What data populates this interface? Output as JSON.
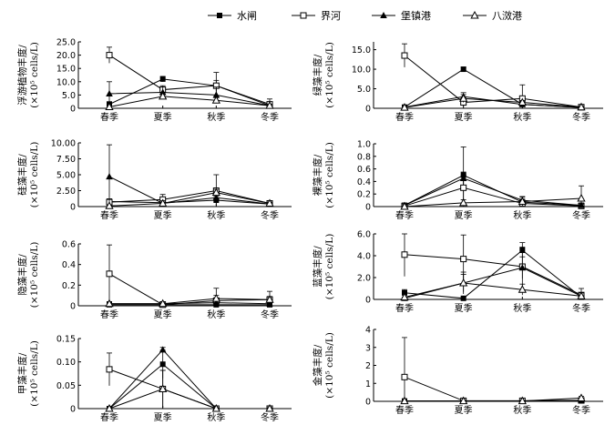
{
  "legend": {
    "items": [
      {
        "label": "水闸",
        "marker": "square-filled"
      },
      {
        "label": "界河",
        "marker": "square-open"
      },
      {
        "label": "堡镇港",
        "marker": "triangle-filled"
      },
      {
        "label": "八滧港",
        "marker": "triangle-open"
      }
    ]
  },
  "chart_data": [
    {
      "type": "line",
      "ylabel_lines": [
        "浮游植物丰度/",
        "(×10⁵ cells/L)"
      ],
      "categories": [
        "春季",
        "夏季",
        "秋季",
        "冬季"
      ],
      "ylim": [
        0,
        25
      ],
      "yticks": [
        "0",
        "5.0",
        "10.0",
        "15.0",
        "20.0",
        "25.0"
      ],
      "ytick_values": [
        0,
        5,
        10,
        15,
        20,
        25
      ],
      "series": [
        {
          "name": "水闸",
          "values": [
            1.5,
            11.0,
            8.5,
            1.0
          ],
          "errors": [
            1.0,
            1.0,
            2.0,
            0.5
          ]
        },
        {
          "name": "界河",
          "values": [
            20.0,
            7.0,
            8.5,
            1.5
          ],
          "errors": [
            3.0,
            1.5,
            5.0,
            2.0
          ]
        },
        {
          "name": "堡镇港",
          "values": [
            5.5,
            6.0,
            5.0,
            1.0
          ],
          "errors": [
            4.5,
            2.0,
            3.0,
            0.5
          ]
        },
        {
          "name": "八滧港",
          "values": [
            0.5,
            4.5,
            3.0,
            1.0
          ],
          "errors": [
            0.5,
            1.0,
            1.0,
            0.5
          ]
        }
      ]
    },
    {
      "type": "line",
      "ylabel_lines": [
        "绿藻丰度/",
        "(×10⁵ cells/L)"
      ],
      "categories": [
        "春季",
        "夏季",
        "秋季",
        "冬季"
      ],
      "ylim": [
        0,
        17
      ],
      "yticks": [
        "0",
        "5.0",
        "10.0",
        "15.0"
      ],
      "ytick_values": [
        0,
        5,
        10,
        15
      ],
      "series": [
        {
          "name": "水闸",
          "values": [
            0.3,
            10.0,
            1.0,
            0.2
          ],
          "errors": [
            0.2,
            0.5,
            0.5,
            0.1
          ]
        },
        {
          "name": "界河",
          "values": [
            13.5,
            1.5,
            2.5,
            0.3
          ],
          "errors": [
            3.0,
            1.0,
            3.5,
            0.2
          ]
        },
        {
          "name": "堡镇港",
          "values": [
            0.3,
            3.0,
            1.0,
            0.2
          ],
          "errors": [
            0.3,
            1.0,
            0.5,
            0.1
          ]
        },
        {
          "name": "八滧港",
          "values": [
            0.2,
            2.5,
            1.5,
            0.3
          ],
          "errors": [
            0.2,
            1.0,
            0.5,
            0.2
          ]
        }
      ]
    },
    {
      "type": "line",
      "ylabel_lines": [
        "硅藻丰度/",
        "(×10⁵ cells/L)"
      ],
      "categories": [
        "春季",
        "夏季",
        "秋季",
        "冬季"
      ],
      "ylim": [
        0,
        10
      ],
      "yticks": [
        "0",
        "2.50",
        "5.00",
        "7.50",
        "10.00"
      ],
      "ytick_values": [
        0,
        2.5,
        5,
        7.5,
        10
      ],
      "series": [
        {
          "name": "水闸",
          "values": [
            0.8,
            0.6,
            1.0,
            0.4
          ],
          "errors": [
            0.4,
            0.4,
            0.6,
            0.2
          ]
        },
        {
          "name": "界河",
          "values": [
            0.7,
            1.1,
            2.5,
            0.5
          ],
          "errors": [
            0.5,
            0.8,
            2.5,
            0.3
          ]
        },
        {
          "name": "堡镇港",
          "values": [
            4.7,
            0.5,
            1.4,
            0.4
          ],
          "errors": [
            5.0,
            0.4,
            0.8,
            0.2
          ]
        },
        {
          "name": "八滧港",
          "values": [
            0.1,
            0.5,
            2.2,
            0.5
          ],
          "errors": [
            0.1,
            0.4,
            0.5,
            0.2
          ]
        }
      ]
    },
    {
      "type": "line",
      "ylabel_lines": [
        "裸藻丰度/",
        "(×10⁵ cells/L)"
      ],
      "categories": [
        "春季",
        "夏季",
        "秋季",
        "冬季"
      ],
      "ylim": [
        0,
        1.0
      ],
      "yticks": [
        "0",
        "0.2",
        "0.4",
        "0.6",
        "0.8",
        "1.0"
      ],
      "ytick_values": [
        0,
        0.2,
        0.4,
        0.6,
        0.8,
        1.0
      ],
      "series": [
        {
          "name": "水闸",
          "values": [
            0.02,
            0.5,
            0.07,
            0.02
          ],
          "errors": [
            0.02,
            0.45,
            0.05,
            0.02
          ]
        },
        {
          "name": "界河",
          "values": [
            0.01,
            0.3,
            0.05,
            0.01
          ],
          "errors": [
            0.01,
            0.2,
            0.04,
            0.01
          ]
        },
        {
          "name": "堡镇港",
          "values": [
            0.02,
            0.45,
            0.1,
            0.02
          ],
          "errors": [
            0.02,
            0.1,
            0.05,
            0.02
          ]
        },
        {
          "name": "八滧港",
          "values": [
            0.0,
            0.06,
            0.08,
            0.13
          ],
          "errors": [
            0.01,
            0.05,
            0.08,
            0.2
          ]
        }
      ]
    },
    {
      "type": "line",
      "ylabel_lines": [
        "隐藻丰度/",
        "(×10⁵ cells/L)"
      ],
      "categories": [
        "春季",
        "夏季",
        "秋季",
        "冬季"
      ],
      "ylim": [
        0,
        0.6
      ],
      "yticks": [
        "0",
        "0.2",
        "0.4",
        "0.6"
      ],
      "ytick_values": [
        0,
        0.2,
        0.4,
        0.6
      ],
      "series": [
        {
          "name": "水闸",
          "values": [
            0.01,
            0.01,
            0.01,
            0.01
          ],
          "errors": [
            0.01,
            0.01,
            0.01,
            0.01
          ]
        },
        {
          "name": "界河",
          "values": [
            0.31,
            0.01,
            0.05,
            0.06
          ],
          "errors": [
            0.28,
            0.03,
            0.12,
            0.08
          ]
        },
        {
          "name": "堡镇港",
          "values": [
            0.02,
            0.02,
            0.03,
            0.02
          ],
          "errors": [
            0.02,
            0.02,
            0.03,
            0.02
          ]
        },
        {
          "name": "八滧港",
          "values": [
            0.02,
            0.02,
            0.07,
            0.06
          ],
          "errors": [
            0.02,
            0.02,
            0.03,
            0.03
          ]
        }
      ]
    },
    {
      "type": "line",
      "ylabel_lines": [
        "蓝藻丰度/",
        "(×10⁵ cells/L)"
      ],
      "categories": [
        "春季",
        "夏季",
        "秋季",
        "冬季"
      ],
      "ylim": [
        0,
        6.0
      ],
      "yticks": [
        "0",
        "2.0",
        "4.0",
        "6.0"
      ],
      "ytick_values": [
        0,
        2,
        4,
        6
      ],
      "series": [
        {
          "name": "水闸",
          "values": [
            0.6,
            0.1,
            4.5,
            0.2
          ],
          "errors": [
            0.3,
            0.1,
            0.7,
            0.2
          ]
        },
        {
          "name": "界河",
          "values": [
            4.1,
            3.7,
            3.0,
            0.4
          ],
          "errors": [
            2.0,
            2.2,
            1.8,
            0.6
          ]
        },
        {
          "name": "堡镇港",
          "values": [
            0.1,
            1.5,
            2.9,
            0.3
          ],
          "errors": [
            0.1,
            0.8,
            1.0,
            0.3
          ]
        },
        {
          "name": "八滧港",
          "values": [
            0.2,
            1.5,
            0.9,
            0.3
          ],
          "errors": [
            0.2,
            1.0,
            0.5,
            0.3
          ]
        }
      ]
    },
    {
      "type": "line",
      "ylabel_lines": [
        "甲藻丰度/",
        "(×10⁵ cells/L)"
      ],
      "categories": [
        "春季",
        "夏季",
        "秋季",
        "冬季"
      ],
      "ylim": [
        0,
        0.15
      ],
      "yticks": [
        "0",
        "0.05",
        "0.10",
        "0.15"
      ],
      "ytick_values": [
        0,
        0.05,
        0.1,
        0.15
      ],
      "series": [
        {
          "name": "水闸",
          "values": [
            0.0,
            0.095,
            0.0,
            0.0
          ],
          "errors": [
            0.0,
            0.03,
            0.002,
            0.002
          ]
        },
        {
          "name": "界河",
          "values": [
            0.084,
            0.042,
            0.0,
            0.0
          ],
          "errors": [
            0.035,
            0.04,
            0.002,
            0.002
          ]
        },
        {
          "name": "堡镇港",
          "values": [
            0.0,
            0.126,
            0.0,
            0.0
          ],
          "errors": [
            0.0,
            0.005,
            0.002,
            0.002
          ]
        },
        {
          "name": "八滧港",
          "values": [
            0.0,
            0.042,
            0.0,
            0.0
          ],
          "errors": [
            0.0,
            0.04,
            0.002,
            0.002
          ]
        }
      ]
    },
    {
      "type": "line",
      "ylabel_lines": [
        "金藻丰度/",
        "(×10⁵ cells/L)"
      ],
      "categories": [
        "春季",
        "夏季",
        "秋季",
        "冬季"
      ],
      "ylim": [
        0,
        4
      ],
      "yticks": [
        "0",
        "1",
        "2",
        "3",
        "4"
      ],
      "ytick_values": [
        0,
        1,
        2,
        3,
        4
      ],
      "series": [
        {
          "name": "水闸",
          "values": [
            0.02,
            0.02,
            0.02,
            0.05
          ],
          "errors": [
            0.02,
            0.02,
            0.02,
            0.05
          ]
        },
        {
          "name": "界河",
          "values": [
            1.35,
            0.03,
            0.03,
            0.05
          ],
          "errors": [
            2.2,
            0.03,
            0.03,
            0.05
          ]
        },
        {
          "name": "堡镇港",
          "values": [
            0.02,
            0.02,
            0.02,
            0.05
          ],
          "errors": [
            0.02,
            0.02,
            0.02,
            0.05
          ]
        },
        {
          "name": "八滧港",
          "values": [
            0.02,
            0.02,
            0.02,
            0.18
          ],
          "errors": [
            0.02,
            0.02,
            0.02,
            0.1
          ]
        }
      ]
    }
  ]
}
